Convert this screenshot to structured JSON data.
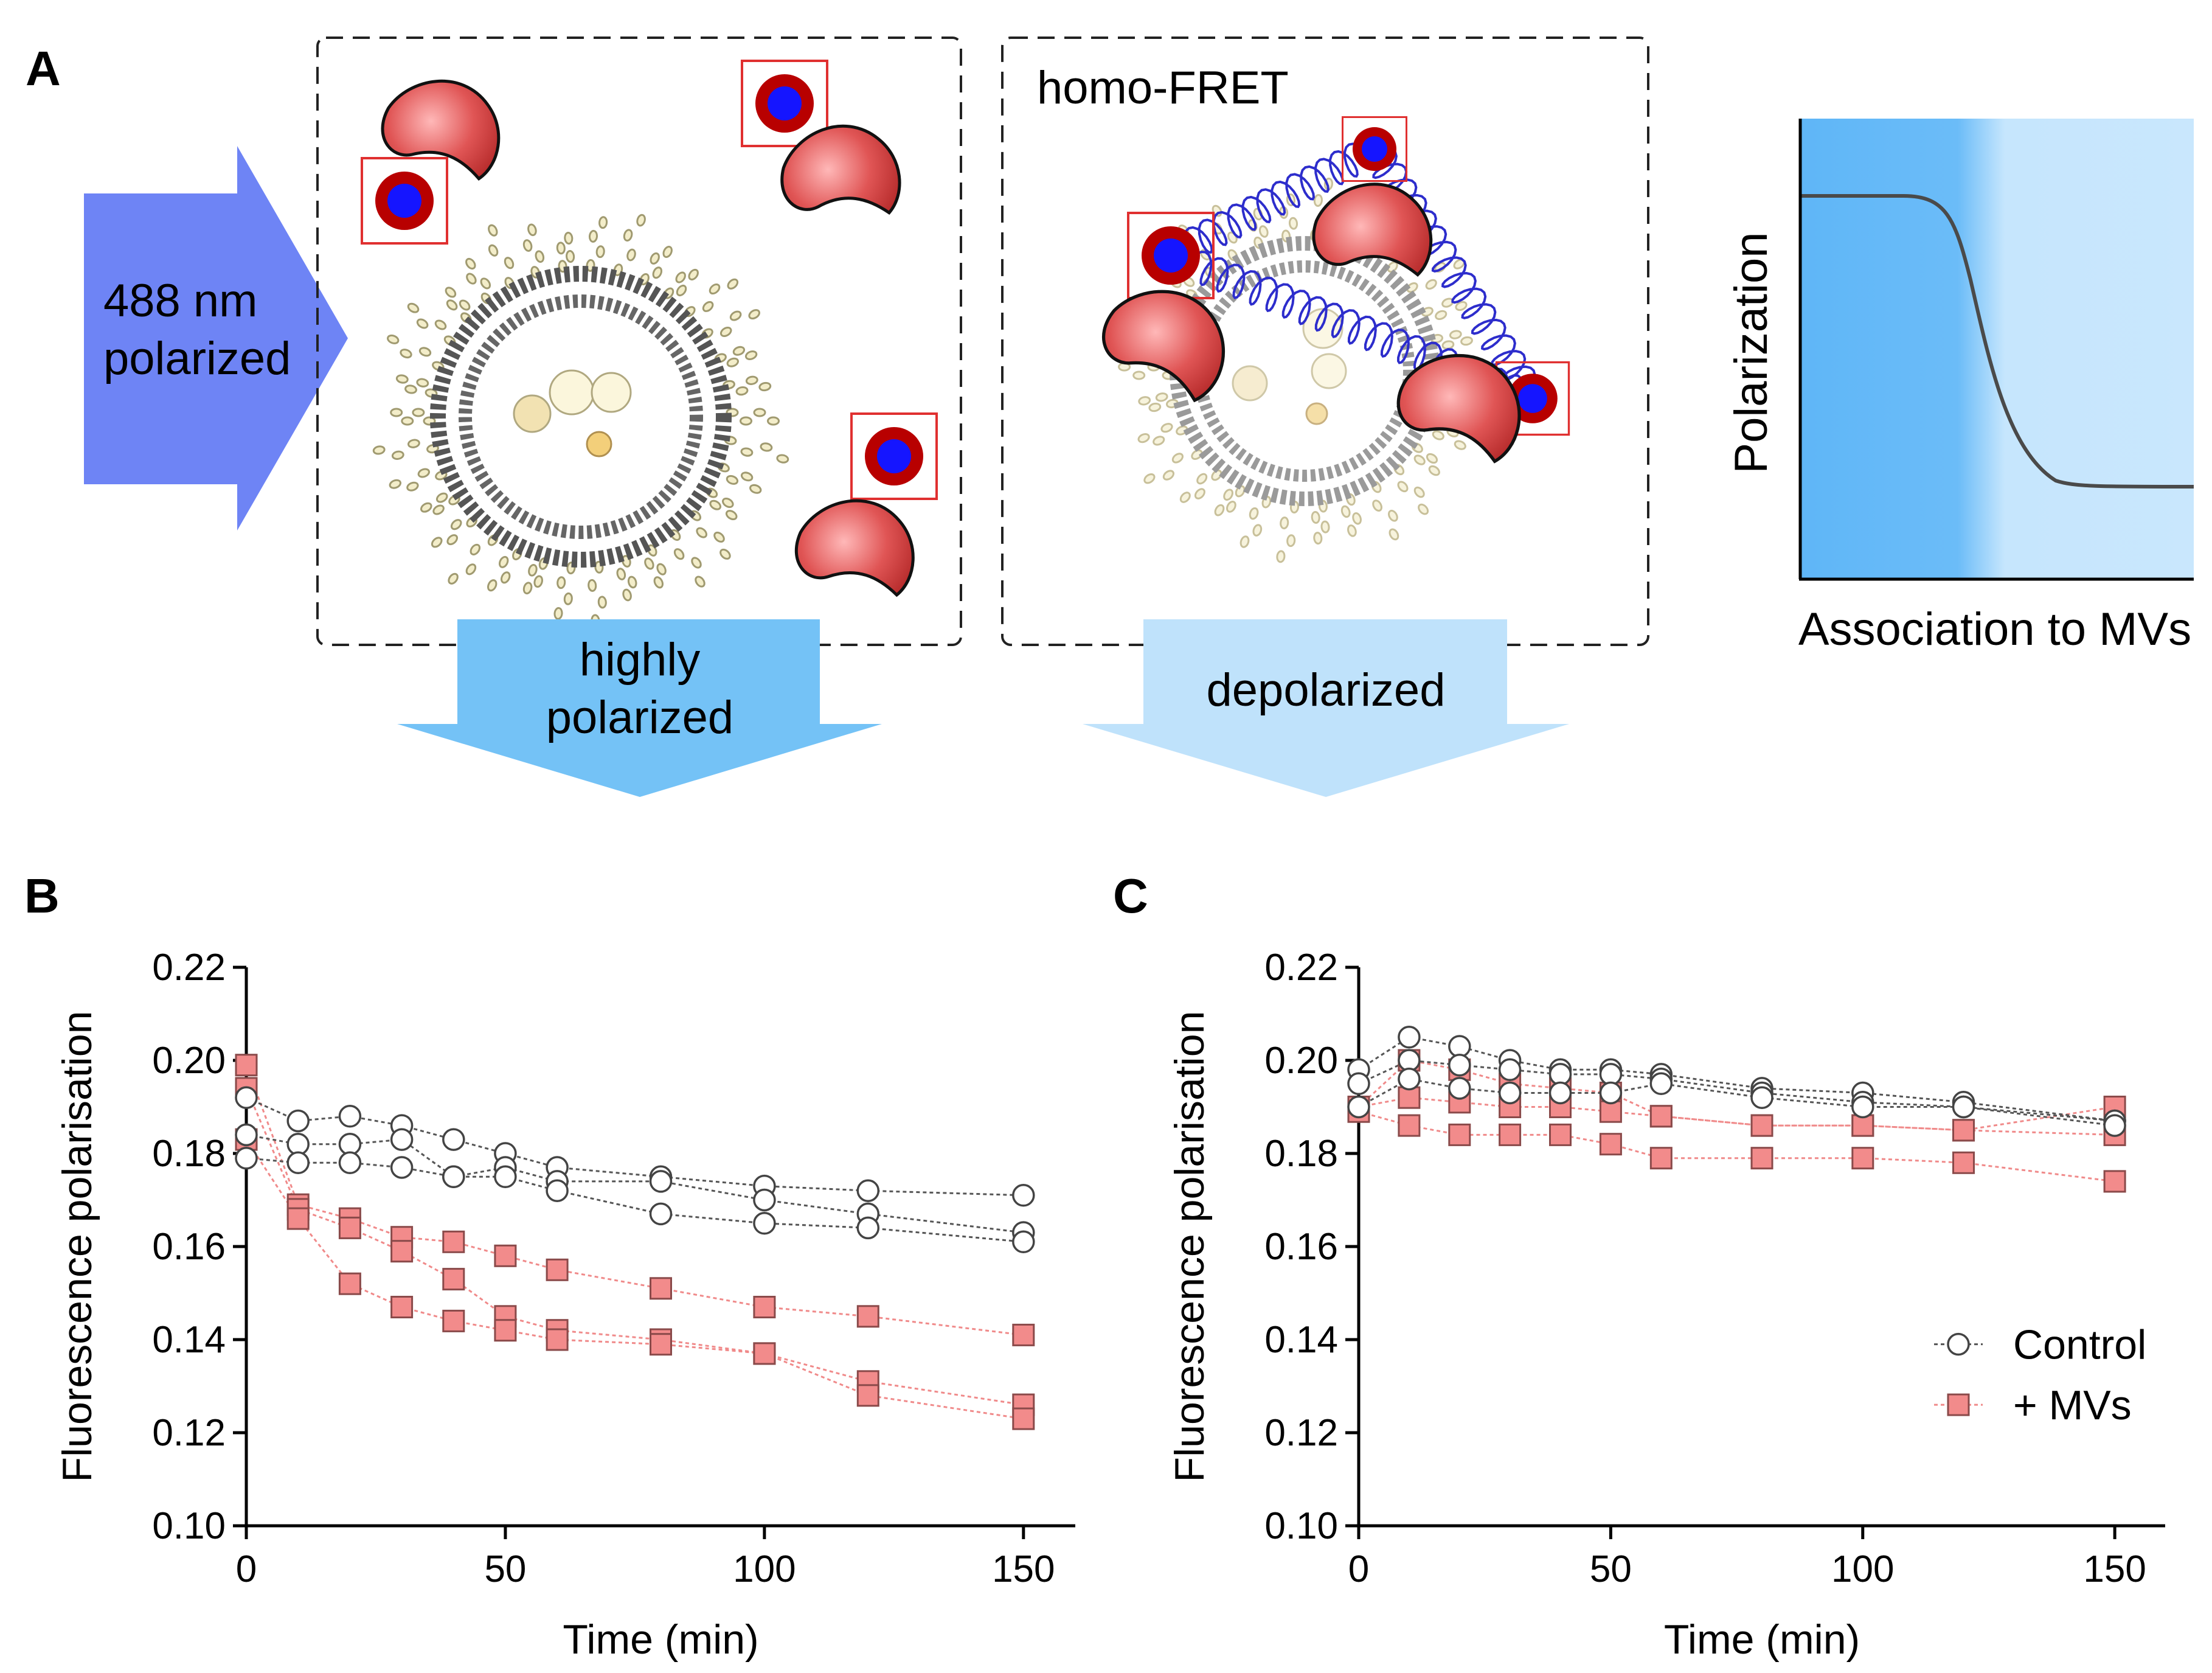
{
  "panels": {
    "a": "A",
    "b": "B",
    "c": "C"
  },
  "schematic": {
    "excitation_line1": "488 nm",
    "excitation_line2": "polarized",
    "box2_title": "homo-FRET",
    "out1_line1": "highly",
    "out1_line2": "polarized",
    "out2": "depolarized",
    "mini_ylabel": "Polarization",
    "mini_xlabel": "Association to MVs"
  },
  "colors": {
    "excitation_arrow": "#6e84f5",
    "polarized_arrow": "#74c2f6",
    "depolarized_arrow": "#bfe2fb",
    "protein": "#d64545",
    "fluorophore_ring": "#b30000",
    "fluorophore_core": "#1a1aff",
    "control": "#ffffff",
    "mvs": "#f28b8b"
  },
  "chart_data": [
    {
      "id": "B",
      "type": "scatter",
      "xlabel": "Time (min)",
      "ylabel": "Fluorescence polarisation",
      "xlim": [
        0,
        160
      ],
      "ylim": [
        0.1,
        0.22
      ],
      "xticks": [
        0,
        50,
        100,
        150
      ],
      "xtick_labels": [
        "0",
        "50",
        "100",
        "150"
      ],
      "yticks": [
        0.1,
        0.12,
        0.14,
        0.16,
        0.18,
        0.2,
        0.22
      ],
      "ytick_labels": [
        "0.10",
        "0.12",
        "0.14",
        "0.16",
        "0.18",
        "0.20",
        "0.22"
      ],
      "x": [
        0,
        10,
        20,
        30,
        40,
        50,
        60,
        80,
        100,
        120,
        150
      ],
      "series": [
        {
          "name": "Control",
          "group": "control",
          "values": [
            0.192,
            0.187,
            0.188,
            0.186,
            0.183,
            0.18,
            0.177,
            0.175,
            0.173,
            0.172,
            0.171
          ]
        },
        {
          "name": "Control",
          "group": "control",
          "values": [
            0.184,
            0.182,
            0.182,
            0.183,
            0.175,
            0.177,
            0.174,
            0.174,
            0.17,
            0.167,
            0.163
          ]
        },
        {
          "name": "Control",
          "group": "control",
          "values": [
            0.179,
            0.178,
            0.178,
            0.177,
            0.175,
            0.175,
            0.172,
            0.167,
            0.165,
            0.164,
            0.161
          ]
        },
        {
          "name": "+ MVs",
          "group": "mvs",
          "values": [
            0.199,
            0.169,
            0.166,
            0.162,
            0.161,
            0.158,
            0.155,
            0.151,
            0.147,
            0.145,
            0.141
          ]
        },
        {
          "name": "+ MVs",
          "group": "mvs",
          "values": [
            0.194,
            0.168,
            0.164,
            0.159,
            0.153,
            0.145,
            0.142,
            0.14,
            0.137,
            0.131,
            0.126
          ]
        },
        {
          "name": "+ MVs",
          "group": "mvs",
          "values": [
            0.183,
            0.166,
            0.152,
            0.147,
            0.144,
            0.142,
            0.14,
            0.139,
            0.137,
            0.128,
            0.123
          ]
        }
      ]
    },
    {
      "id": "C",
      "type": "scatter",
      "xlabel": "Time (min)",
      "ylabel": "Fluorescence polarisation",
      "xlim": [
        0,
        160
      ],
      "ylim": [
        0.1,
        0.22
      ],
      "xticks": [
        0,
        50,
        100,
        150
      ],
      "xtick_labels": [
        "0",
        "50",
        "100",
        "150"
      ],
      "yticks": [
        0.1,
        0.12,
        0.14,
        0.16,
        0.18,
        0.2,
        0.22
      ],
      "ytick_labels": [
        "0.10",
        "0.12",
        "0.14",
        "0.16",
        "0.18",
        "0.20",
        "0.22"
      ],
      "x": [
        0,
        10,
        20,
        30,
        40,
        50,
        60,
        80,
        100,
        120,
        150
      ],
      "legend": {
        "control": "Control",
        "mvs": "+ MVs",
        "position": "lower-right"
      },
      "series": [
        {
          "name": "Control",
          "group": "control",
          "values": [
            0.198,
            0.205,
            0.203,
            0.2,
            0.198,
            0.198,
            0.197,
            0.194,
            0.193,
            0.191,
            0.187
          ]
        },
        {
          "name": "Control",
          "group": "control",
          "values": [
            0.195,
            0.2,
            0.199,
            0.198,
            0.197,
            0.197,
            0.196,
            0.193,
            0.191,
            0.19,
            0.187
          ]
        },
        {
          "name": "Control",
          "group": "control",
          "values": [
            0.19,
            0.196,
            0.194,
            0.193,
            0.193,
            0.193,
            0.195,
            0.192,
            0.19,
            0.19,
            0.186
          ]
        },
        {
          "name": "+ MVs",
          "group": "mvs",
          "values": [
            0.19,
            0.2,
            0.198,
            0.195,
            0.194,
            0.193,
            0.188,
            0.186,
            0.186,
            0.185,
            0.19
          ]
        },
        {
          "name": "+ MVs",
          "group": "mvs",
          "values": [
            0.19,
            0.192,
            0.191,
            0.19,
            0.19,
            0.189,
            0.188,
            0.186,
            0.186,
            0.185,
            0.184
          ]
        },
        {
          "name": "+ MVs",
          "group": "mvs",
          "values": [
            0.189,
            0.186,
            0.184,
            0.184,
            0.184,
            0.182,
            0.179,
            0.179,
            0.179,
            0.178,
            0.174
          ]
        }
      ]
    }
  ]
}
